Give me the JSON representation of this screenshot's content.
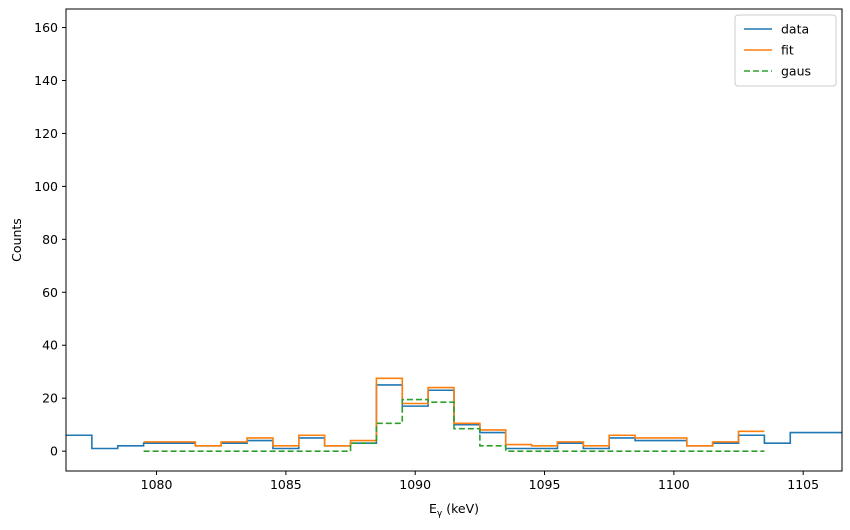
{
  "chart_data": {
    "type": "line",
    "title": "",
    "xlabel": "E",
    "xlabel_subscript": "γ",
    "xlabel_unit": " (keV)",
    "ylabel": "Counts",
    "xlim": [
      1076.5,
      1106.5
    ],
    "ylim": [
      -7.5,
      167
    ],
    "x_ticks": [
      1080,
      1085,
      1090,
      1095,
      1100,
      1105
    ],
    "y_ticks": [
      0,
      20,
      40,
      60,
      80,
      100,
      120,
      140,
      160
    ],
    "grid": false,
    "legend_position": "top-right",
    "series": [
      {
        "name": "data",
        "color": "#1f77b4",
        "style": "solid",
        "edges": [
          1076.5,
          1077.5,
          1078.5,
          1079.5,
          1080.5,
          1081.5,
          1082.5,
          1083.5,
          1084.5,
          1085.5,
          1086.5,
          1087.5,
          1088.5,
          1089.5,
          1090.5,
          1091.5,
          1092.5,
          1093.5,
          1094.5,
          1095.5,
          1096.5,
          1097.5,
          1098.5,
          1099.5,
          1100.5,
          1101.5,
          1102.5,
          1103.5,
          1104.5,
          1105.5,
          1106.5
        ],
        "values": [
          6,
          1,
          2,
          3,
          3,
          2,
          3,
          4,
          1,
          5,
          2,
          3,
          25,
          17,
          23,
          10,
          7,
          1,
          1,
          3,
          1,
          5,
          4,
          4,
          2,
          3,
          6,
          3,
          7,
          7
        ]
      },
      {
        "name": "fit",
        "color": "#ff7f0e",
        "style": "solid",
        "edges": [
          1079.5,
          1080.5,
          1081.5,
          1082.5,
          1083.5,
          1084.5,
          1085.5,
          1086.5,
          1087.5,
          1088.5,
          1089.5,
          1090.5,
          1091.5,
          1092.5,
          1093.5,
          1094.5,
          1095.5,
          1096.5,
          1097.5,
          1098.5,
          1099.5,
          1100.5,
          1101.5,
          1102.5,
          1103.5
        ],
        "values": [
          3.5,
          3.5,
          2,
          3.5,
          5,
          2,
          6,
          2,
          4,
          27.5,
          18,
          24,
          10.5,
          8,
          2.5,
          2,
          3.5,
          2,
          6,
          5,
          5,
          2,
          3.5,
          7.5
        ]
      },
      {
        "name": "gaus",
        "color": "#2ca02c",
        "style": "dashed",
        "edges": [
          1079.5,
          1080.5,
          1081.5,
          1082.5,
          1083.5,
          1084.5,
          1085.5,
          1086.5,
          1087.5,
          1088.5,
          1089.5,
          1090.5,
          1091.5,
          1092.5,
          1093.5,
          1094.5,
          1095.5,
          1096.5,
          1097.5,
          1098.5,
          1099.5,
          1100.5,
          1101.5,
          1102.5,
          1103.5
        ],
        "values": [
          0,
          0,
          0,
          0,
          0,
          0,
          0,
          0,
          3,
          10.5,
          19.5,
          18.5,
          8.5,
          2,
          0,
          0,
          0,
          0,
          0,
          0,
          0,
          0,
          0,
          0
        ]
      }
    ]
  }
}
